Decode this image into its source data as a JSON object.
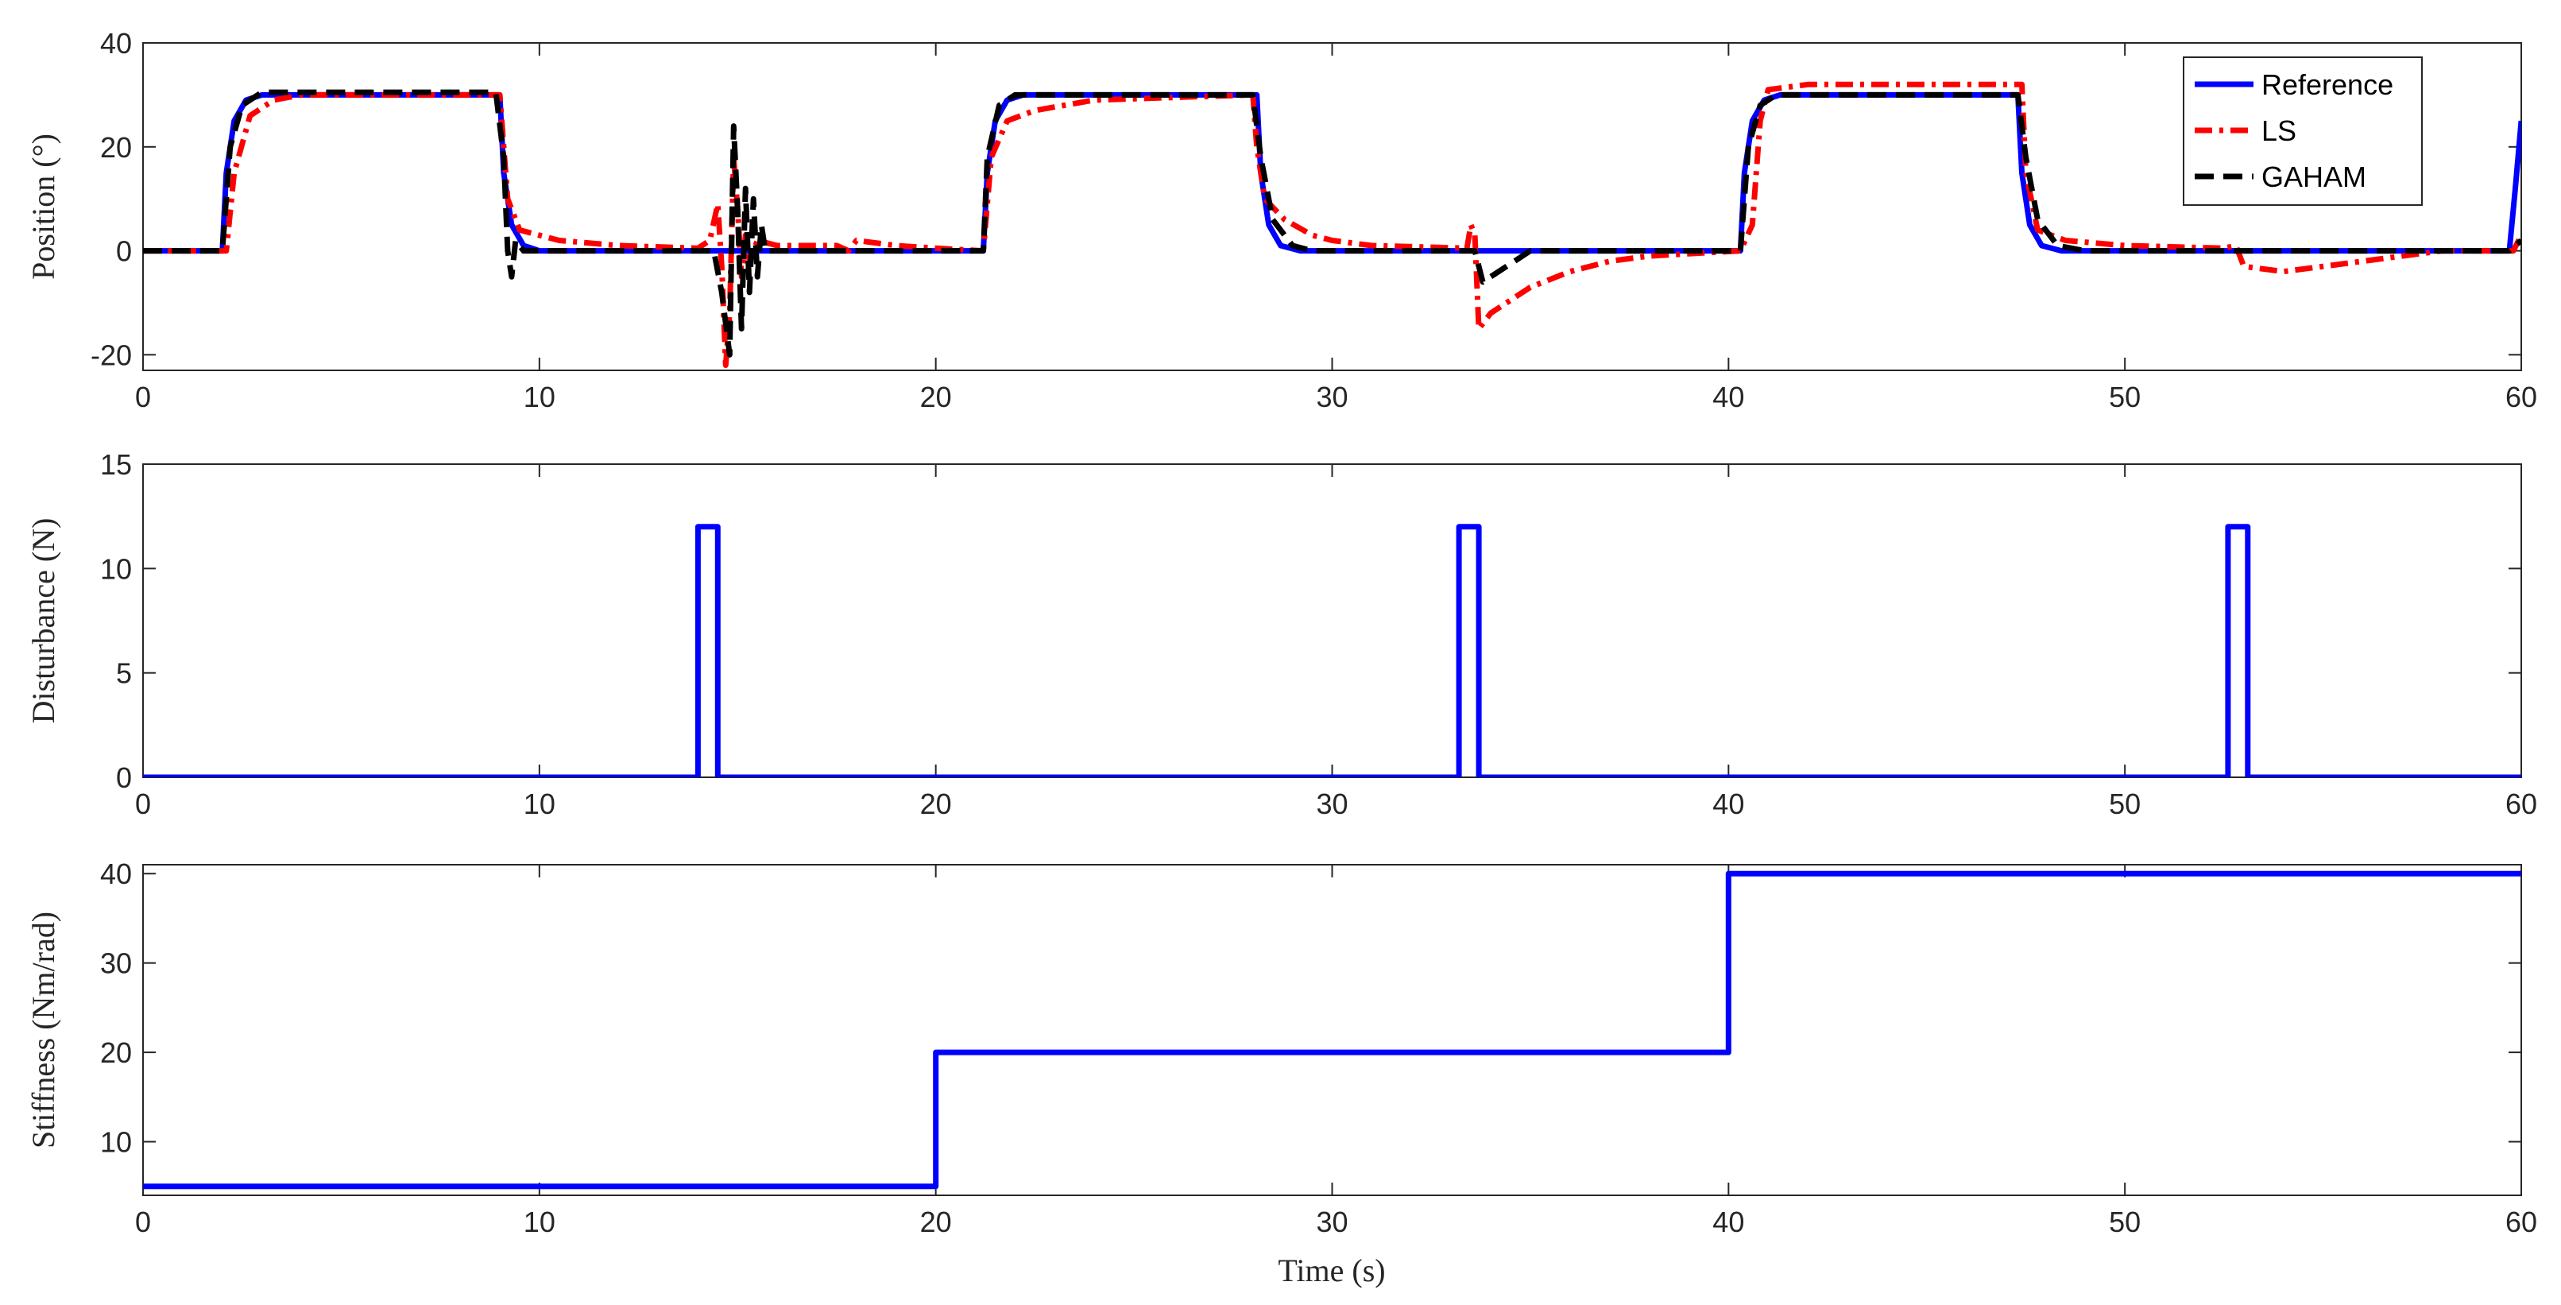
{
  "chart_data": [
    {
      "type": "line",
      "id": "position",
      "ylabel": "Position (°)",
      "xlabel": "",
      "xlim": [
        0,
        60
      ],
      "ylim": [
        -23,
        40
      ],
      "xticks": [
        0,
        10,
        20,
        30,
        40,
        50,
        60
      ],
      "yticks": [
        -20,
        0,
        20,
        40
      ],
      "legend": "top-right",
      "series": [
        {
          "name": "Reference",
          "color": "#0000ff",
          "dash": "solid",
          "points": [
            [
              0,
              0
            ],
            [
              2,
              0
            ],
            [
              2.1,
              15
            ],
            [
              2.3,
              25
            ],
            [
              2.6,
              29
            ],
            [
              3,
              30
            ],
            [
              9,
              30
            ],
            [
              9.1,
              15
            ],
            [
              9.3,
              5
            ],
            [
              9.6,
              1
            ],
            [
              10,
              0
            ],
            [
              21.2,
              0
            ],
            [
              21.3,
              15
            ],
            [
              21.5,
              25
            ],
            [
              21.8,
              29
            ],
            [
              22.2,
              30
            ],
            [
              28.1,
              30
            ],
            [
              28.2,
              15
            ],
            [
              28.4,
              5
            ],
            [
              28.7,
              1
            ],
            [
              29.2,
              0
            ],
            [
              40.3,
              0
            ],
            [
              40.4,
              15
            ],
            [
              40.6,
              25
            ],
            [
              40.9,
              29
            ],
            [
              41.3,
              30
            ],
            [
              47.3,
              30
            ],
            [
              47.4,
              15
            ],
            [
              47.6,
              5
            ],
            [
              47.9,
              1
            ],
            [
              48.4,
              0
            ],
            [
              59.7,
              0
            ],
            [
              59.85,
              12
            ],
            [
              60,
              25
            ]
          ]
        },
        {
          "name": "LS",
          "color": "#ff0000",
          "dash": "dashdot",
          "points": [
            [
              0,
              0
            ],
            [
              2.1,
              0
            ],
            [
              2.3,
              15
            ],
            [
              2.7,
              26
            ],
            [
              3.3,
              29
            ],
            [
              4,
              30
            ],
            [
              9,
              30
            ],
            [
              9.2,
              10
            ],
            [
              9.5,
              4
            ],
            [
              10,
              3
            ],
            [
              10.5,
              2
            ],
            [
              12,
              1
            ],
            [
              14,
              0.5
            ],
            [
              14.3,
              2
            ],
            [
              14.5,
              9
            ],
            [
              14.6,
              -3
            ],
            [
              14.7,
              -22
            ],
            [
              14.8,
              -12
            ],
            [
              14.9,
              18
            ],
            [
              15,
              8
            ],
            [
              15.1,
              -5
            ],
            [
              15.2,
              3
            ],
            [
              15.3,
              -2
            ],
            [
              15.5,
              2
            ],
            [
              16,
              1
            ],
            [
              17.5,
              1
            ],
            [
              17.8,
              0
            ],
            [
              18,
              2
            ],
            [
              19,
              1
            ],
            [
              20,
              0.5
            ],
            [
              21.2,
              0
            ],
            [
              21.4,
              18
            ],
            [
              21.8,
              25
            ],
            [
              22.5,
              27
            ],
            [
              24,
              29
            ],
            [
              28,
              30
            ],
            [
              28.1,
              20
            ],
            [
              28.3,
              10
            ],
            [
              28.8,
              6
            ],
            [
              29.5,
              3
            ],
            [
              30,
              2
            ],
            [
              31,
              1
            ],
            [
              33.4,
              0.5
            ],
            [
              33.5,
              5
            ],
            [
              33.6,
              3
            ],
            [
              33.7,
              -15
            ],
            [
              34,
              -12
            ],
            [
              35,
              -7
            ],
            [
              36,
              -4
            ],
            [
              37,
              -2
            ],
            [
              38,
              -1
            ],
            [
              40.3,
              0
            ],
            [
              40.6,
              5
            ],
            [
              40.8,
              25
            ],
            [
              41,
              31
            ],
            [
              42,
              32
            ],
            [
              47.4,
              32
            ],
            [
              47.5,
              15
            ],
            [
              47.8,
              4
            ],
            [
              48.5,
              2
            ],
            [
              50,
              1
            ],
            [
              52.5,
              0.5
            ],
            [
              52.8,
              1
            ],
            [
              53,
              -3
            ],
            [
              54,
              -4
            ],
            [
              55,
              -3
            ],
            [
              56,
              -2
            ],
            [
              57,
              -1
            ],
            [
              58,
              0
            ],
            [
              59.8,
              0
            ],
            [
              60,
              3
            ]
          ]
        },
        {
          "name": "GAHAM",
          "color": "#000000",
          "dash": "dashed",
          "points": [
            [
              0,
              0
            ],
            [
              2,
              0
            ],
            [
              2.2,
              20
            ],
            [
              2.5,
              28
            ],
            [
              3,
              30.5
            ],
            [
              8.9,
              30.5
            ],
            [
              9.1,
              18
            ],
            [
              9.2,
              0
            ],
            [
              9.3,
              -5
            ],
            [
              9.4,
              2
            ],
            [
              9.6,
              0
            ],
            [
              14.4,
              0
            ],
            [
              14.6,
              -8
            ],
            [
              14.8,
              -20
            ],
            [
              14.9,
              24
            ],
            [
              15,
              8
            ],
            [
              15.1,
              -15
            ],
            [
              15.2,
              12
            ],
            [
              15.3,
              -8
            ],
            [
              15.4,
              10
            ],
            [
              15.5,
              -5
            ],
            [
              15.6,
              5
            ],
            [
              15.7,
              0
            ],
            [
              16,
              0
            ],
            [
              21.2,
              0
            ],
            [
              21.3,
              18
            ],
            [
              21.6,
              28
            ],
            [
              22,
              30
            ],
            [
              28,
              30
            ],
            [
              28.2,
              18
            ],
            [
              28.5,
              6
            ],
            [
              29,
              1
            ],
            [
              29.5,
              0
            ],
            [
              33.6,
              0
            ],
            [
              33.8,
              -6
            ],
            [
              34.2,
              -4
            ],
            [
              34.6,
              -2
            ],
            [
              35,
              0
            ],
            [
              40.3,
              0
            ],
            [
              40.5,
              20
            ],
            [
              40.8,
              28
            ],
            [
              41.2,
              30
            ],
            [
              47.3,
              30
            ],
            [
              47.5,
              18
            ],
            [
              47.8,
              6
            ],
            [
              48.3,
              1
            ],
            [
              49,
              0
            ],
            [
              59.7,
              0
            ],
            [
              60,
              2
            ]
          ]
        }
      ]
    },
    {
      "type": "line",
      "id": "disturbance",
      "ylabel": "Disturbance (N)",
      "xlabel": "",
      "xlim": [
        0,
        60
      ],
      "ylim": [
        0,
        15
      ],
      "xticks": [
        0,
        10,
        20,
        30,
        40,
        50,
        60
      ],
      "yticks": [
        0,
        5,
        10,
        15
      ],
      "series": [
        {
          "name": "",
          "color": "#0000ff",
          "dash": "solid",
          "points": [
            [
              0,
              0
            ],
            [
              14,
              0
            ],
            [
              14,
              12
            ],
            [
              14.5,
              12
            ],
            [
              14.5,
              0
            ],
            [
              33.2,
              0
            ],
            [
              33.2,
              12
            ],
            [
              33.7,
              12
            ],
            [
              33.7,
              0
            ],
            [
              52.6,
              0
            ],
            [
              52.6,
              12
            ],
            [
              53.1,
              12
            ],
            [
              53.1,
              0
            ],
            [
              60,
              0
            ]
          ]
        }
      ]
    },
    {
      "type": "line",
      "id": "stiffness",
      "ylabel": "Stiffness (Nm/rad)",
      "xlabel": "Time (s)",
      "xlim": [
        0,
        60
      ],
      "ylim": [
        4,
        41
      ],
      "xticks": [
        0,
        10,
        20,
        30,
        40,
        50,
        60
      ],
      "yticks": [
        10,
        20,
        30,
        40
      ],
      "series": [
        {
          "name": "",
          "color": "#0000ff",
          "dash": "solid",
          "points": [
            [
              0,
              5
            ],
            [
              20,
              5
            ],
            [
              20,
              20
            ],
            [
              40,
              20
            ],
            [
              40,
              40
            ],
            [
              60,
              40
            ]
          ]
        }
      ]
    }
  ]
}
